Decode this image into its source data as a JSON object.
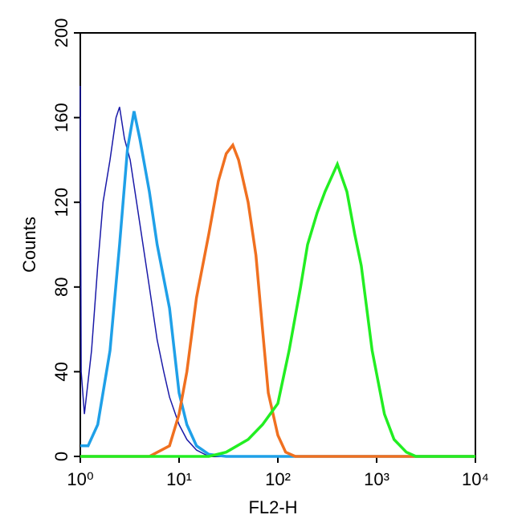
{
  "chart_data": {
    "type": "line",
    "xlabel": "FL2-H",
    "ylabel": "Counts",
    "xscale": "log",
    "xlim": [
      1,
      10000
    ],
    "ylim": [
      0,
      200
    ],
    "xticks": [
      {
        "value": 1,
        "label": "10⁰"
      },
      {
        "value": 10,
        "label": "10¹"
      },
      {
        "value": 100,
        "label": "10²"
      },
      {
        "value": 1000,
        "label": "10³"
      },
      {
        "value": 10000,
        "label": "10⁴"
      }
    ],
    "yticks": [
      0,
      40,
      80,
      120,
      160,
      200
    ],
    "series": [
      {
        "color": "#1a1aa8",
        "width": 1.5,
        "x": [
          1,
          1.02,
          1.1,
          1.3,
          1.5,
          1.7,
          2.0,
          2.3,
          2.5,
          2.8,
          3.2,
          4,
          5,
          6,
          7,
          8,
          10,
          12,
          15,
          20,
          10000
        ],
        "values": [
          175,
          40,
          20,
          50,
          90,
          120,
          140,
          160,
          165,
          150,
          140,
          110,
          80,
          55,
          40,
          28,
          15,
          8,
          3,
          0,
          0
        ]
      },
      {
        "color": "#1fa0e8",
        "width": 3.5,
        "x": [
          1,
          1.2,
          1.5,
          2,
          2.5,
          3,
          3.5,
          4,
          5,
          6,
          8,
          10,
          12,
          15,
          20,
          30,
          10000
        ],
        "values": [
          5,
          5,
          15,
          50,
          100,
          145,
          163,
          150,
          125,
          100,
          70,
          30,
          15,
          5,
          1,
          0,
          0
        ]
      },
      {
        "color": "#f07020",
        "width": 3.5,
        "x": [
          1,
          5,
          8,
          10,
          12,
          15,
          20,
          25,
          30,
          35,
          40,
          50,
          60,
          70,
          80,
          100,
          120,
          150,
          10000
        ],
        "values": [
          0,
          0,
          5,
          20,
          40,
          75,
          105,
          130,
          143,
          147,
          140,
          120,
          95,
          60,
          30,
          10,
          2,
          0,
          0
        ]
      },
      {
        "color": "#22ee22",
        "width": 3.5,
        "x": [
          1,
          20,
          30,
          50,
          70,
          100,
          130,
          170,
          200,
          250,
          300,
          400,
          500,
          600,
          700,
          900,
          1200,
          1500,
          2000,
          2500,
          10000
        ],
        "values": [
          0,
          0,
          2,
          8,
          15,
          25,
          50,
          80,
          100,
          115,
          125,
          138,
          125,
          105,
          90,
          50,
          20,
          8,
          2,
          0,
          0
        ]
      }
    ]
  }
}
